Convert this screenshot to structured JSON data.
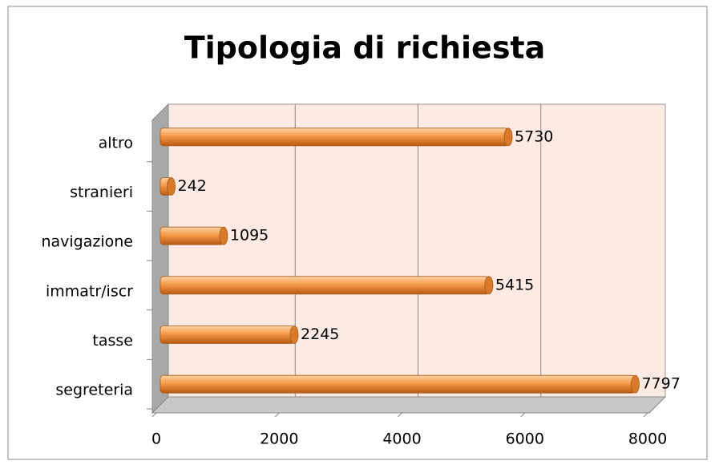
{
  "chart_data": {
    "type": "bar",
    "orientation": "horizontal",
    "title": "Tipologia di richiesta",
    "categories": [
      "segreteria",
      "tasse",
      "immatr/iscr",
      "navigazione",
      "stranieri",
      "altro"
    ],
    "values": [
      7797,
      2245,
      5415,
      1095,
      242,
      5730
    ],
    "color": "#f0903a",
    "xlim": [
      0,
      8000
    ],
    "xticks": [
      0,
      2000,
      4000,
      6000,
      8000
    ],
    "grid": true
  }
}
